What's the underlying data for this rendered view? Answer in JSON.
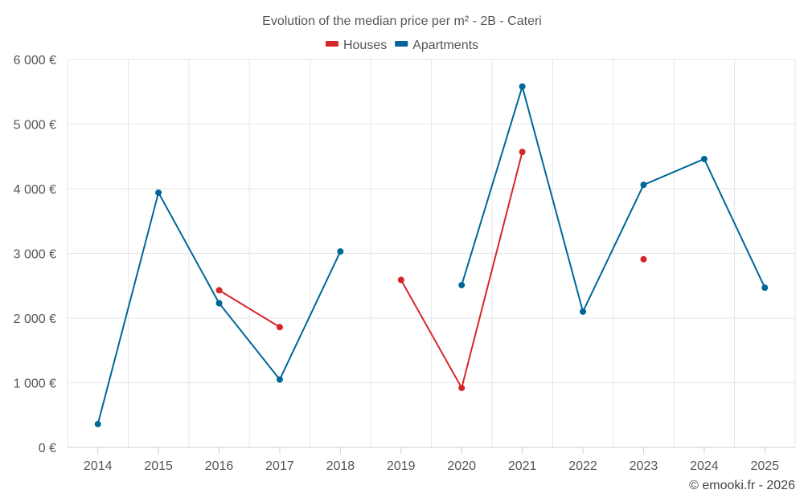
{
  "chart_data": {
    "type": "line",
    "title": "Evolution of the median price per m² - 2B - Cateri",
    "categories": [
      "2014",
      "2015",
      "2016",
      "2017",
      "2018",
      "2019",
      "2020",
      "2021",
      "2022",
      "2023",
      "2024",
      "2025"
    ],
    "ylim": [
      0,
      6000
    ],
    "yticks": [
      0,
      1000,
      2000,
      3000,
      4000,
      5000,
      6000
    ],
    "ytick_labels": [
      "0 €",
      "1 000 €",
      "2 000 €",
      "3 000 €",
      "4 000 €",
      "5 000 €",
      "6 000 €"
    ],
    "grid": true,
    "legend_position": "top-center",
    "series": [
      {
        "name": "Houses",
        "color": "#d62728",
        "values": [
          null,
          null,
          2430,
          1860,
          null,
          2590,
          920,
          4570,
          null,
          2910,
          null,
          null
        ]
      },
      {
        "name": "Apartments",
        "color": "#006699",
        "values": [
          360,
          3940,
          2230,
          1050,
          3030,
          null,
          2510,
          5580,
          2100,
          4060,
          4460,
          2470
        ]
      }
    ]
  },
  "credit": "© emooki.fr - 2026"
}
